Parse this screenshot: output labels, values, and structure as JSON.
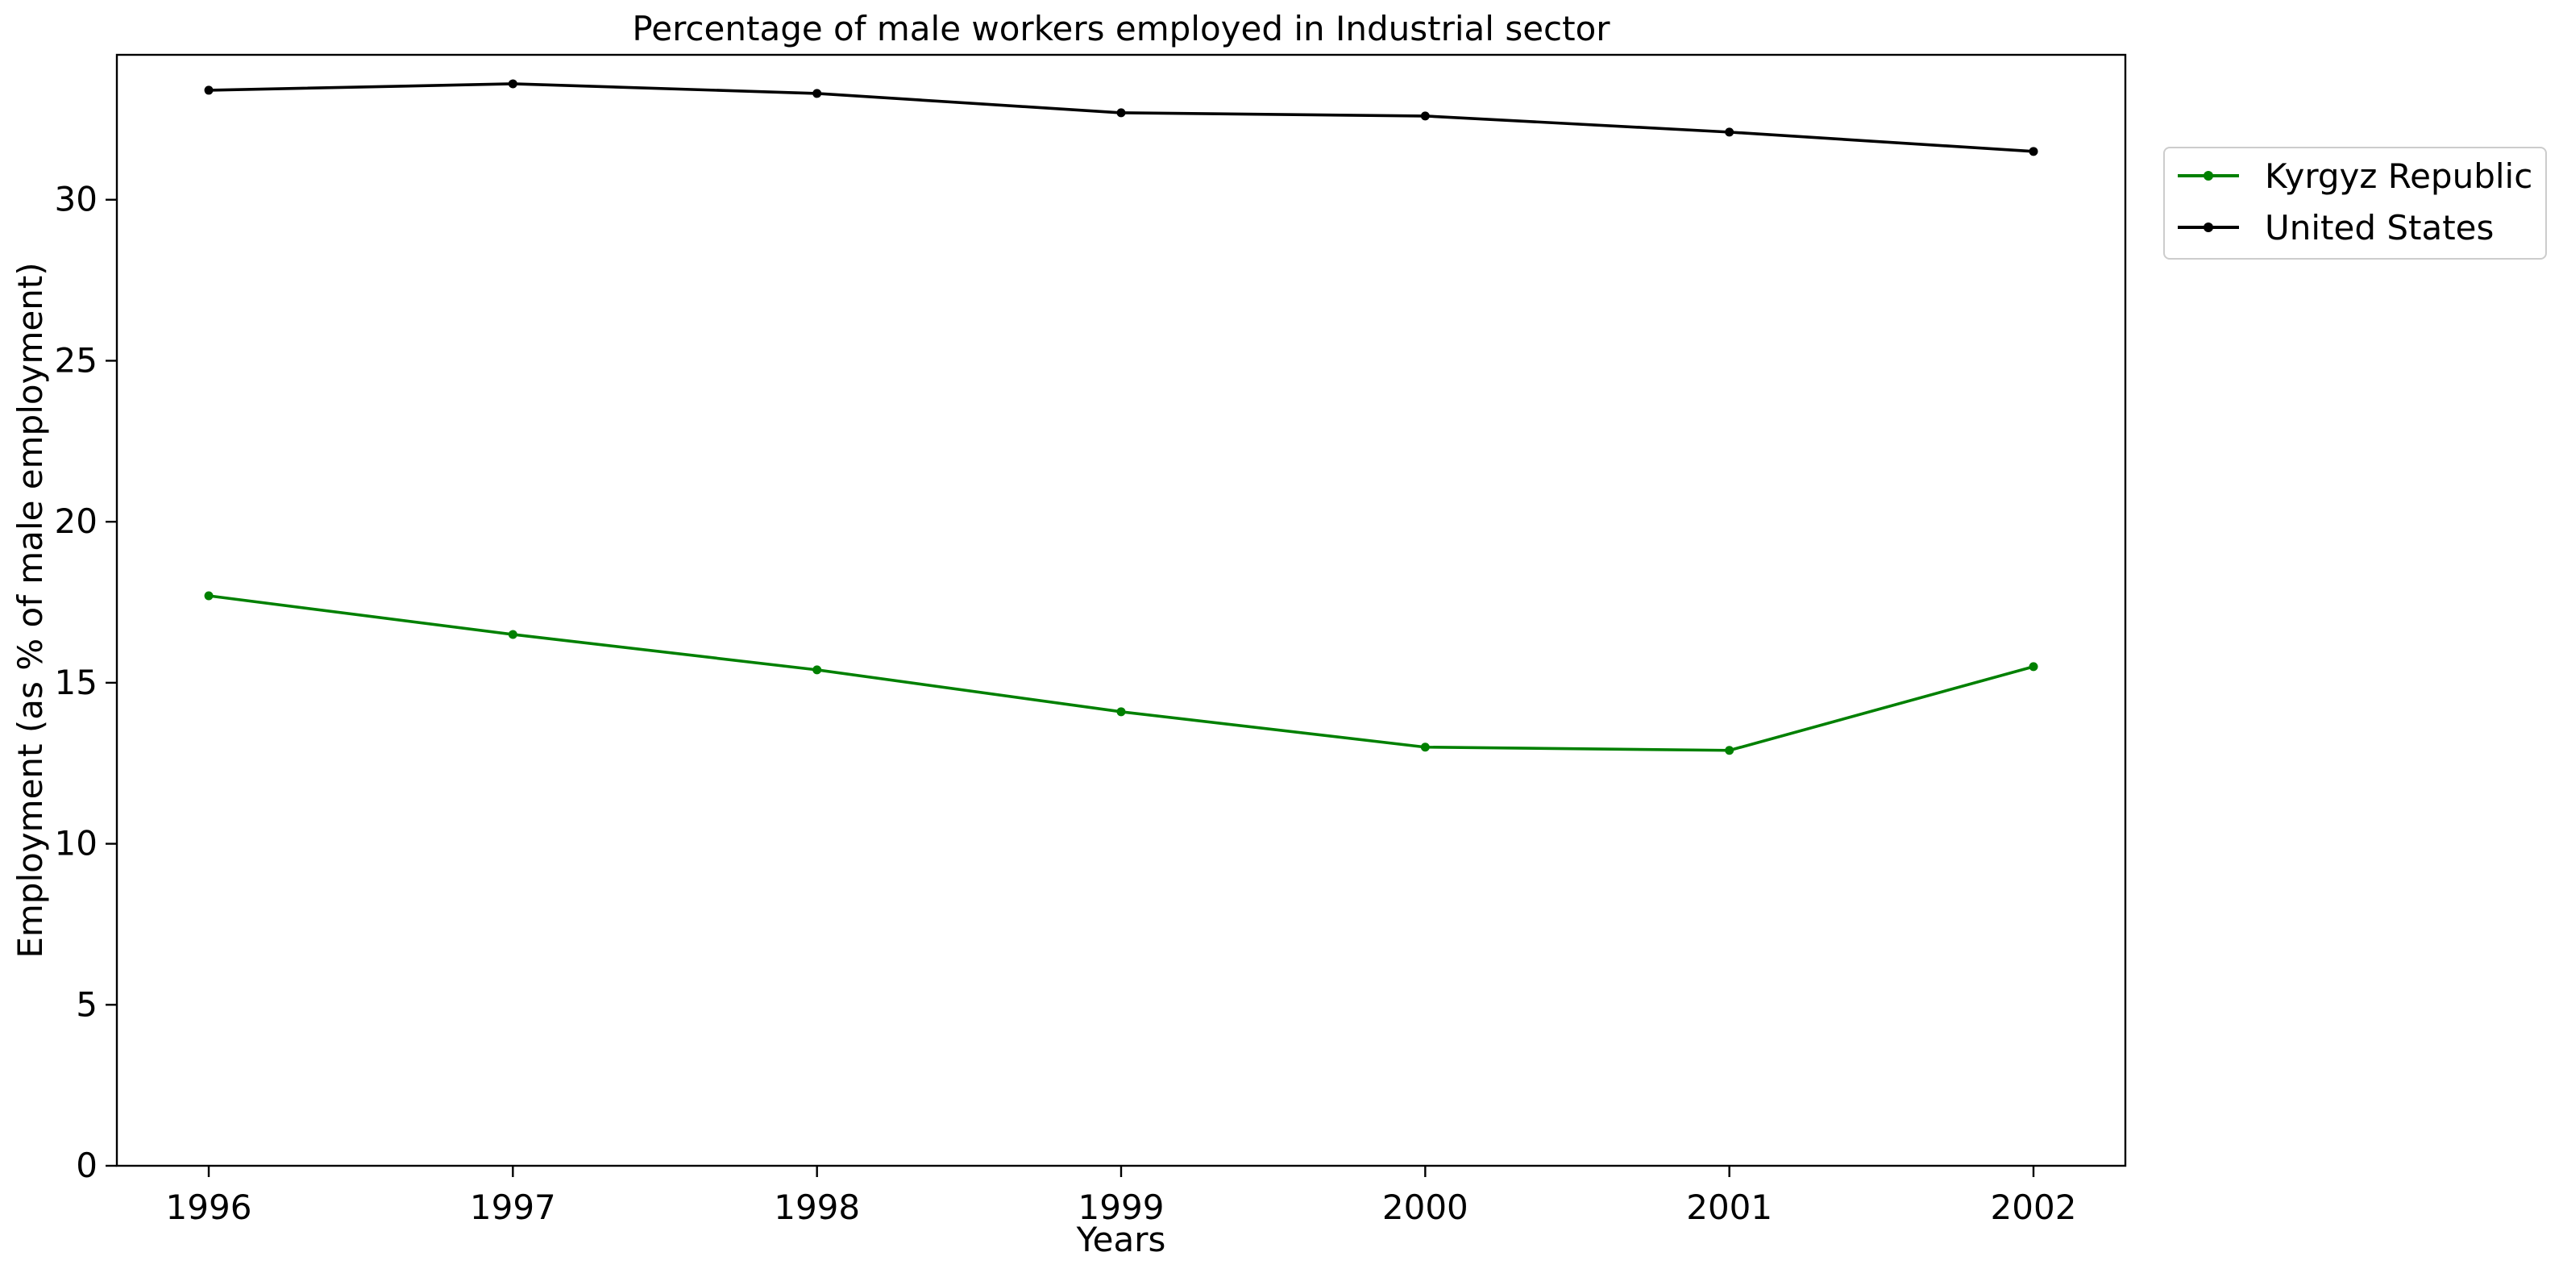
{
  "chart_data": {
    "type": "line",
    "title": "Percentage of male workers employed in Industrial sector",
    "xlabel": "Years",
    "ylabel": "Employment (as % of male employment)",
    "x": [
      "1996",
      "1997",
      "1998",
      "1999",
      "2000",
      "2001",
      "2002"
    ],
    "ylim": [
      0,
      34.5
    ],
    "yticks": [
      0,
      5,
      10,
      15,
      20,
      25,
      30
    ],
    "grid": false,
    "legend_position": "outside-top-right",
    "series": [
      {
        "name": "Kyrgyz Republic",
        "color": "#008000",
        "marker": "dot",
        "values": [
          17.7,
          16.5,
          15.4,
          14.1,
          13.0,
          12.9,
          15.5
        ]
      },
      {
        "name": "United States",
        "color": "#000000",
        "marker": "dot",
        "values": [
          33.4,
          33.6,
          33.3,
          32.7,
          32.6,
          32.1,
          31.5
        ]
      }
    ]
  }
}
